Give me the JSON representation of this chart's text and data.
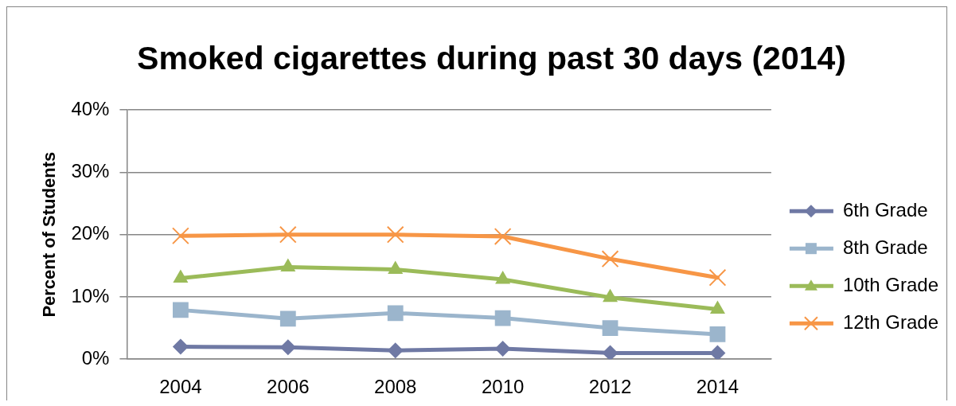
{
  "chart_data": {
    "type": "line",
    "title": "Smoked cigarettes during past 30 days (2014)",
    "ylabel": "Percent of Students",
    "categories": [
      "2004",
      "2006",
      "2008",
      "2010",
      "2012",
      "2014"
    ],
    "series": [
      {
        "name": "6th Grade",
        "color": "#6f79a4",
        "marker": "diamond",
        "values": [
          2.0,
          1.9,
          1.4,
          1.7,
          1.0,
          1.0
        ]
      },
      {
        "name": "8th Grade",
        "color": "#9bb5cc",
        "marker": "square",
        "values": [
          7.9,
          6.5,
          7.4,
          6.6,
          5.0,
          4.0
        ]
      },
      {
        "name": "10th Grade",
        "color": "#9bbb59",
        "marker": "triangle",
        "values": [
          13.0,
          14.8,
          14.4,
          12.8,
          9.9,
          8.0
        ]
      },
      {
        "name": "12th Grade",
        "color": "#f79646",
        "marker": "cross",
        "values": [
          19.8,
          20.0,
          20.0,
          19.7,
          16.1,
          13.1
        ]
      }
    ],
    "ylim": [
      0,
      40
    ],
    "yticks": [
      {
        "value": 0,
        "label": "0%"
      },
      {
        "value": 10,
        "label": "10%"
      },
      {
        "value": 20,
        "label": "20%"
      },
      {
        "value": 30,
        "label": "30%"
      },
      {
        "value": 40,
        "label": "40%"
      }
    ],
    "grid": "y",
    "legend": "right",
    "line_style": "solid"
  }
}
